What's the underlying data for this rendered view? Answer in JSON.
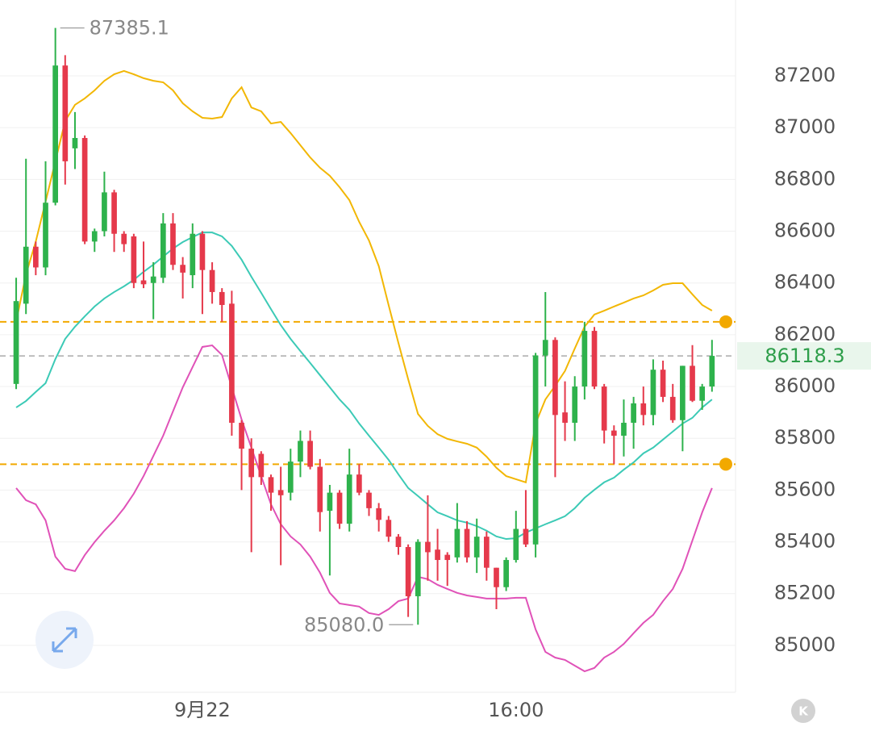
{
  "chart_data": {
    "type": "candlestick",
    "xlim": [
      -1.65,
      73.4
    ],
    "xticks": [
      {
        "value": 19,
        "label": "9月22"
      },
      {
        "value": 51,
        "label": "16:00"
      }
    ],
    "ylim": [
      84819,
      87493
    ],
    "yticks": [
      85000,
      85200,
      85400,
      85600,
      85800,
      86000,
      86200,
      86400,
      86600,
      86800,
      87000,
      87200
    ],
    "grid": true,
    "up_color": "#2eb24c",
    "down_color": "#e5394b",
    "open": [
      86010,
      86320,
      86540,
      86460,
      86710,
      87240,
      86920,
      86960,
      86560,
      86600,
      86750,
      86590,
      86580,
      86410,
      86400,
      86420,
      86630,
      86470,
      86430,
      86590,
      86450,
      86365,
      86320,
      85860,
      85760,
      85740,
      85650,
      85600,
      85590,
      85710,
      85790,
      85690,
      85520,
      85590,
      85470,
      85660,
      85590,
      85530,
      85485,
      85420,
      85380,
      85190,
      85400,
      85370,
      85350,
      85340,
      85450,
      85340,
      85420,
      85300,
      85225,
      85330,
      85450,
      85390,
      86120,
      86180,
      85900,
      85860,
      86000,
      86215,
      86000,
      85830,
      85810,
      85860,
      85935,
      85890,
      86065,
      85960,
      85870,
      86080,
      85945,
      86000
    ],
    "high": [
      86420,
      86880,
      86560,
      86870,
      87385.1,
      87280,
      87060,
      86970,
      86610,
      86830,
      86760,
      86600,
      86590,
      86560,
      86480,
      86670,
      86670,
      86500,
      86630,
      86600,
      86480,
      86380,
      86370,
      85870,
      85800,
      85750,
      85660,
      85690,
      85760,
      85830,
      85830,
      85720,
      85620,
      85600,
      85760,
      85700,
      85600,
      85550,
      85500,
      85430,
      85390,
      85410,
      85580,
      85450,
      85360,
      85550,
      85480,
      85490,
      85440,
      85300,
      85340,
      85520,
      85600,
      86130,
      86365,
      86190,
      86020,
      86040,
      86250,
      86230,
      86010,
      85850,
      85950,
      85960,
      86000,
      86105,
      86100,
      86010,
      86080,
      86160,
      86010,
      86180
    ],
    "low": [
      85990,
      86280,
      86430,
      86430,
      86700,
      86780,
      86840,
      86550,
      86520,
      86580,
      86520,
      86520,
      86380,
      86380,
      86260,
      86400,
      86450,
      86340,
      86380,
      86280,
      86320,
      86250,
      85810,
      85600,
      85360,
      85620,
      85520,
      85310,
      85560,
      85650,
      85680,
      85440,
      85270,
      85450,
      85440,
      85580,
      85500,
      85440,
      85400,
      85350,
      85110,
      85080,
      85250,
      85250,
      85230,
      85320,
      85320,
      85280,
      85250,
      85140,
      85210,
      85320,
      85380,
      85340,
      86000,
      85650,
      85790,
      85790,
      85950,
      85990,
      85780,
      85700,
      85730,
      85760,
      85850,
      85850,
      85940,
      85860,
      85750,
      85940,
      85910,
      85980
    ],
    "close": [
      86330,
      86540,
      86460,
      86710,
      87240,
      86870,
      86960,
      86560,
      86600,
      86750,
      86590,
      86550,
      86400,
      86395,
      86425,
      86630,
      86470,
      86440,
      86590,
      86450,
      86365,
      86315,
      85860,
      85760,
      85650,
      85650,
      85590,
      85580,
      85710,
      85790,
      85690,
      85515,
      85590,
      85470,
      85660,
      85590,
      85530,
      85485,
      85420,
      85380,
      85190,
      85400,
      85360,
      85330,
      85330,
      85450,
      85340,
      85420,
      85300,
      85225,
      85330,
      85450,
      85390,
      86120,
      86180,
      85890,
      85860,
      86000,
      86215,
      86000,
      85830,
      85810,
      85860,
      85935,
      85890,
      86065,
      85960,
      85870,
      86080,
      85945,
      86000,
      86118.3
    ],
    "bands": {
      "upper": {
        "color": "#f2b705",
        "values": [
          86250,
          86433,
          86560,
          86714,
          86870,
          87026,
          87088,
          87113,
          87144,
          87181,
          87206,
          87219,
          87206,
          87191,
          87181,
          87175,
          87144,
          87094,
          87063,
          87038,
          87035,
          87041,
          87113,
          87156,
          87078,
          87063,
          87016,
          87022,
          86979,
          86932,
          86885,
          86845,
          86814,
          86770,
          86720,
          86636,
          86564,
          86465,
          86315,
          86169,
          86028,
          85894,
          85848,
          85816,
          85798,
          85788,
          85779,
          85764,
          85729,
          85686,
          85654,
          85642,
          85630,
          85857,
          85950,
          86003,
          86060,
          86147,
          86231,
          86278,
          86293,
          86309,
          86324,
          86340,
          86352,
          86371,
          86393,
          86399,
          86399,
          86356,
          86315,
          86293
        ]
      },
      "middle": {
        "color": "#3ccab6",
        "values": [
          85919,
          85944,
          85979,
          86013,
          86106,
          86184,
          86231,
          86271,
          86309,
          86340,
          86365,
          86387,
          86412,
          86443,
          86471,
          86502,
          86533,
          86558,
          86577,
          86595,
          86595,
          86580,
          86543,
          86490,
          86424,
          86362,
          86299,
          86237,
          86184,
          86137,
          86091,
          86044,
          85997,
          85950,
          85910,
          85857,
          85810,
          85764,
          85717,
          85661,
          85608,
          85577,
          85545,
          85514,
          85499,
          85483,
          85474,
          85461,
          85443,
          85421,
          85411,
          85414,
          85436,
          85452,
          85468,
          85483,
          85499,
          85530,
          85570,
          85601,
          85630,
          85648,
          85679,
          85707,
          85742,
          85764,
          85795,
          85826,
          85857,
          85879,
          85919,
          85950
        ]
      },
      "lower": {
        "color": "#e052b8",
        "values": [
          85608,
          85561,
          85545,
          85483,
          85343,
          85296,
          85287,
          85349,
          85399,
          85443,
          85483,
          85530,
          85586,
          85654,
          85732,
          85810,
          85904,
          85997,
          86075,
          86153,
          86159,
          86122,
          85997,
          85873,
          85764,
          85654,
          85545,
          85468,
          85421,
          85390,
          85343,
          85281,
          85203,
          85162,
          85156,
          85150,
          85125,
          85118,
          85140,
          85171,
          85181,
          85265,
          85256,
          85234,
          85218,
          85203,
          85193,
          85187,
          85181,
          85181,
          85181,
          85184,
          85184,
          85062,
          84975,
          84953,
          84944,
          84922,
          84900,
          84913,
          84953,
          84975,
          85006,
          85047,
          85087,
          85118,
          85171,
          85218,
          85296,
          85405,
          85514,
          85608
        ]
      }
    },
    "levels": [
      {
        "value": 86250,
        "color": "#f2a900"
      },
      {
        "value": 85700,
        "color": "#f2a900"
      }
    ],
    "annotations": [
      "87385.1",
      "85080.0"
    ]
  },
  "ui": {
    "corner_badge": "K"
  }
}
